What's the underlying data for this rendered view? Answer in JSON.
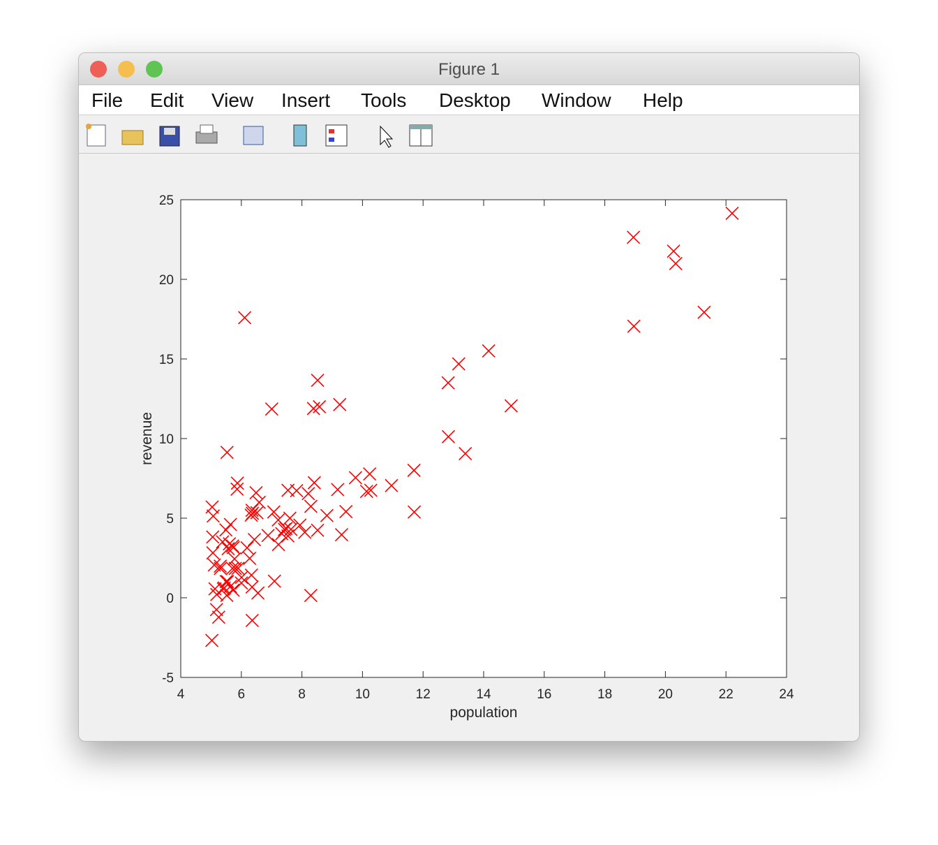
{
  "window": {
    "title": "Figure 1"
  },
  "menu": {
    "items": [
      "File",
      "Edit",
      "View",
      "Insert",
      "Tools",
      "Desktop",
      "Window",
      "Help"
    ]
  },
  "chart_data": {
    "type": "scatter",
    "xlabel": "population",
    "ylabel": "revenue",
    "color": "#ff0000",
    "xlim": [
      4,
      24
    ],
    "xticks": [
      4,
      6,
      8,
      10,
      12,
      14,
      16,
      18,
      20,
      22,
      24
    ],
    "ylim": [
      -5,
      25
    ],
    "yticks": [
      -5,
      0,
      5,
      10,
      15,
      20,
      25
    ],
    "x": [
      6.1101,
      5.5277,
      8.5186,
      7.0032,
      5.8598,
      8.3829,
      7.4764,
      8.5781,
      6.4862,
      5.0546,
      5.7107,
      14.164,
      5.734,
      8.4084,
      5.6407,
      5.3794,
      6.3654,
      5.1301,
      6.4296,
      7.0708,
      6.1891,
      20.27,
      5.4901,
      6.3261,
      5.5649,
      18.945,
      12.828,
      10.957,
      13.176,
      22.203,
      5.2524,
      6.5894,
      9.2482,
      5.8918,
      8.2111,
      7.9334,
      8.0959,
      5.6063,
      12.836,
      6.3534,
      5.4069,
      6.8825,
      11.708,
      5.7737,
      7.8247,
      7.0931,
      5.0702,
      5.8014,
      11.7,
      5.5416,
      7.5402,
      5.3077,
      7.4239,
      7.6031,
      6.3328,
      6.3589,
      6.2742,
      5.6397,
      9.3102,
      9.4536,
      8.8254,
      5.1793,
      21.279,
      14.908,
      18.959,
      7.2182,
      8.2951,
      10.236,
      5.4994,
      20.341,
      10.136,
      7.3345,
      6.0062,
      7.2259,
      5.0269,
      6.5479,
      7.5386,
      5.0365,
      10.274,
      5.1077,
      5.7292,
      5.1884,
      6.3557,
      9.7687,
      6.5159,
      8.5172,
      9.1802,
      6.002,
      5.5204,
      5.0594,
      5.7077,
      7.6366,
      5.8707,
      5.3054,
      8.2934,
      13.394,
      5.4369
    ],
    "y": [
      17.592,
      9.1302,
      13.662,
      11.854,
      6.8233,
      11.886,
      4.3483,
      12,
      6.5987,
      3.8166,
      3.2522,
      15.505,
      3.1551,
      7.2258,
      0.71618,
      3.5129,
      5.3048,
      0.56077,
      3.6518,
      5.3893,
      3.1386,
      21.767,
      4.263,
      5.1875,
      3.0825,
      22.638,
      13.501,
      7.0467,
      14.692,
      24.147,
      -1.22,
      5.9966,
      12.134,
      1.8495,
      6.5426,
      4.5623,
      4.1164,
      3.3928,
      10.117,
      5.4974,
      0.55657,
      3.9115,
      5.3854,
      2.4406,
      6.7318,
      1.0463,
      5.1337,
      1.844,
      8.0043,
      1.0179,
      6.7504,
      1.8396,
      4.2885,
      4.9981,
      1.4233,
      -1.4211,
      2.4756,
      4.6042,
      3.9624,
      5.4141,
      5.1694,
      -0.74279,
      17.929,
      12.054,
      17.054,
      4.8852,
      5.7442,
      7.7754,
      1.0173,
      20.992,
      6.6799,
      4.0259,
      1.2784,
      3.3411,
      -2.6807,
      0.29678,
      3.8845,
      5.7014,
      6.7526,
      2.0576,
      0.47953,
      0.20421,
      0.67861,
      7.5435,
      5.3436,
      4.2415,
      6.7981,
      0.92695,
      0.152,
      2.8214,
      1.8451,
      4.2959,
      7.2029,
      1.9869,
      0.14454,
      9.0551,
      0.61705
    ]
  }
}
